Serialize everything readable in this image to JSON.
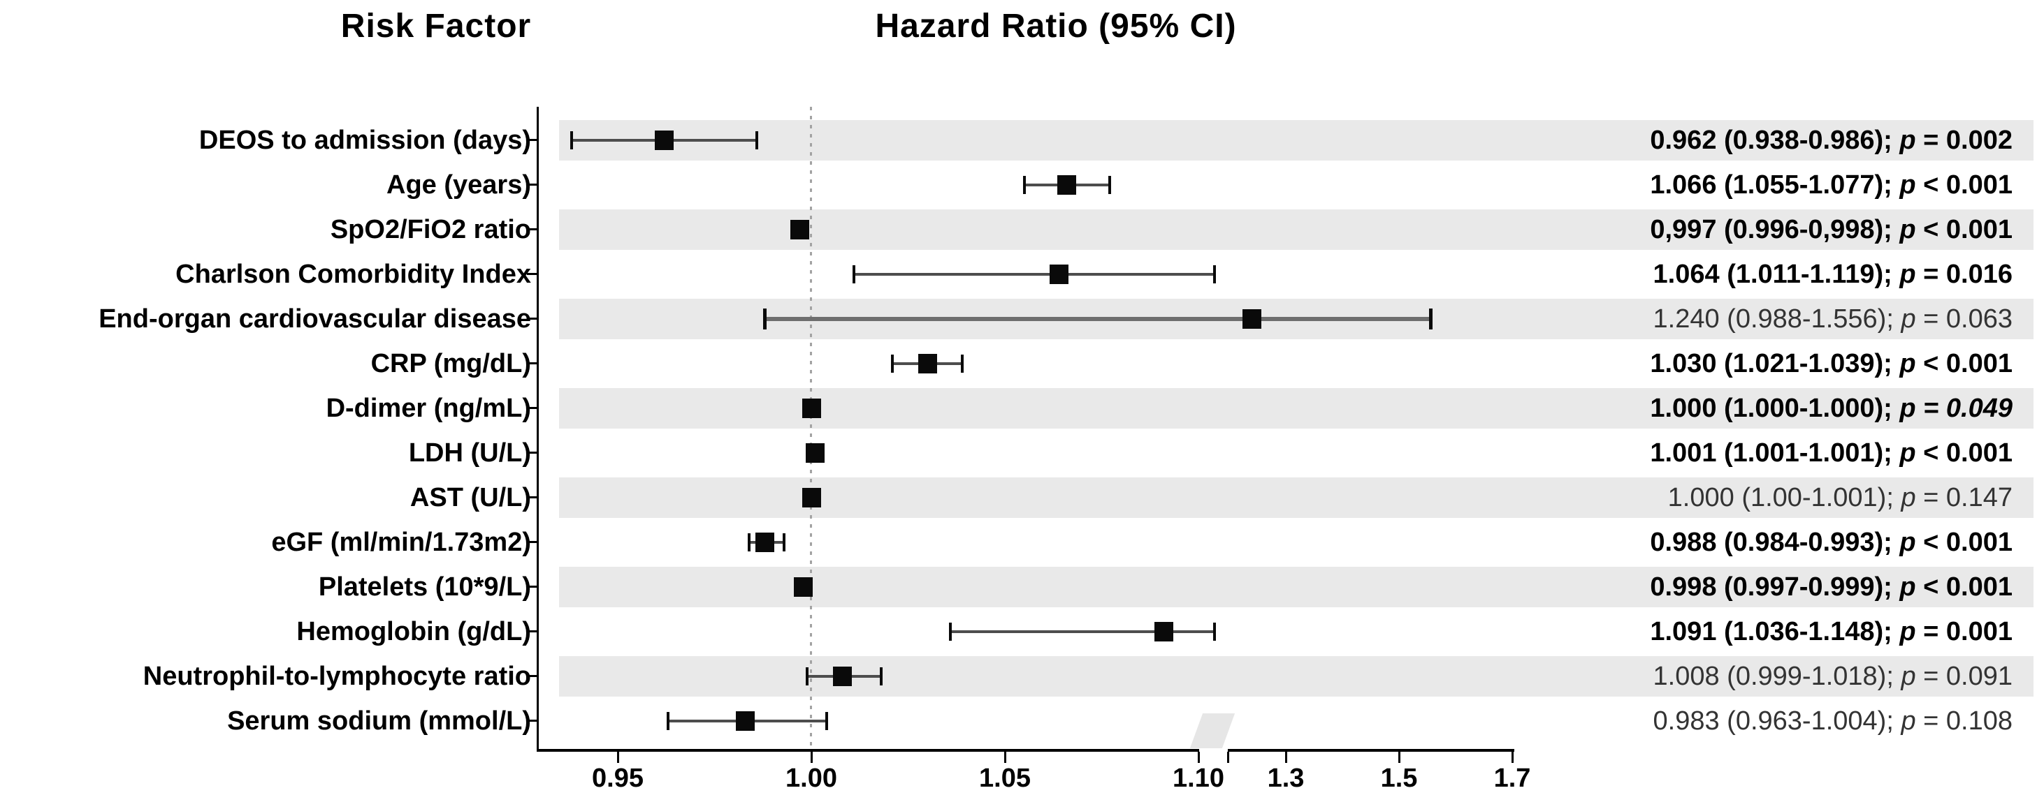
{
  "header": {
    "risk_factor": "Risk Factor",
    "hazard_ratio": "Hazard Ratio (95% CI)"
  },
  "colors": {
    "band": "#e9e9e9",
    "ci_line": "#4d4d4d",
    "ci_line_thick": "#6e6e6e",
    "marker": "#0a0a0a",
    "cap": "#0a0a0a",
    "axis": "#000000",
    "reference_line": "#a3a3a3",
    "text_bold": "#000000",
    "text_regular": "#333333"
  },
  "chart_data": {
    "type": "scatter",
    "subtype": "forest-plot",
    "title": "Hazard Ratio (95% CI)",
    "left_column_title": "Risk Factor",
    "reference_line_value": 1.0,
    "x_axis": {
      "broken": true,
      "left_segment_range": [
        0.93,
        1.11
      ],
      "right_segment_range": [
        1.2,
        1.75
      ],
      "ticks": [
        {
          "label": "0.95",
          "value": 0.95
        },
        {
          "label": "1.00",
          "value": 1.0
        },
        {
          "label": "1.05",
          "value": 1.05
        },
        {
          "label": "1.10",
          "value": 1.1
        },
        {
          "label": "1.3",
          "value": 1.3
        },
        {
          "label": "1.5",
          "value": 1.5
        },
        {
          "label": "1.7",
          "value": 1.7
        }
      ]
    },
    "rows": [
      {
        "label": "DEOS to admission (days)",
        "hr": 0.962,
        "ci_low": 0.938,
        "ci_high": 0.986,
        "value_text": "0.962 (0.938-0.986); ",
        "p_symbol": "p",
        "p_text": " = 0.002",
        "bold": true,
        "shaded": true
      },
      {
        "label": "Age (years)",
        "hr": 1.066,
        "ci_low": 1.055,
        "ci_high": 1.077,
        "value_text": "1.066 (1.055-1.077); ",
        "p_symbol": "p",
        "p_text": " < 0.001",
        "bold": true,
        "shaded": false
      },
      {
        "label": "SpO2/FiO2 ratio",
        "hr": 0.997,
        "ci_low": 0.996,
        "ci_high": 0.998,
        "value_text": "0,997 (0.996-0,998); ",
        "p_symbol": "p",
        "p_text": " < 0.001",
        "bold": true,
        "shaded": true
      },
      {
        "label": "Charlson Comorbidity Index",
        "hr": 1.064,
        "ci_low": 1.011,
        "ci_high": 1.119,
        "value_text": "1.064 (1.011-1.119); ",
        "p_symbol": "p",
        "p_text": " = 0.016",
        "bold": true,
        "shaded": false
      },
      {
        "label": "End-organ cardiovascular disease",
        "hr": 1.24,
        "ci_low": 0.988,
        "ci_high": 1.556,
        "value_text": "1.240 (0.988-1.556); ",
        "p_symbol": "p",
        "p_text": " = 0.063",
        "bold": false,
        "shaded": true,
        "thick_ci": true
      },
      {
        "label": "CRP (mg/dL)",
        "hr": 1.03,
        "ci_low": 1.021,
        "ci_high": 1.039,
        "value_text": "1.030 (1.021-1.039); ",
        "p_symbol": "p",
        "p_text": " < 0.001",
        "bold": true,
        "shaded": false
      },
      {
        "label": "D-dimer (ng/mL)",
        "hr": 1.0,
        "ci_low": 1.0,
        "ci_high": 1.0,
        "value_text": "1.000 (1.000-1.000); ",
        "p_symbol": "p",
        "p_text": " = 0.049",
        "bold": true,
        "shaded": true,
        "p_italic_full": true
      },
      {
        "label": "LDH (U/L)",
        "hr": 1.001,
        "ci_low": 1.001,
        "ci_high": 1.001,
        "value_text": "1.001 (1.001-1.001); ",
        "p_symbol": "p",
        "p_text": " < 0.001",
        "bold": true,
        "shaded": false
      },
      {
        "label": "AST (U/L)",
        "hr": 1.0,
        "ci_low": 1.0,
        "ci_high": 1.001,
        "value_text": "1.000 (1.00-1.001); ",
        "p_symbol": "p",
        "p_text": " = 0.147",
        "bold": false,
        "shaded": true
      },
      {
        "label": "eGF (ml/min/1.73m2)",
        "hr": 0.988,
        "ci_low": 0.984,
        "ci_high": 0.993,
        "value_text": "0.988 (0.984-0.993); ",
        "p_symbol": "p",
        "p_text": " < 0.001",
        "bold": true,
        "shaded": false
      },
      {
        "label": "Platelets (10*9/L)",
        "hr": 0.998,
        "ci_low": 0.997,
        "ci_high": 0.999,
        "value_text": "0.998 (0.997-0.999); ",
        "p_symbol": "p",
        "p_text": " < 0.001",
        "bold": true,
        "shaded": true
      },
      {
        "label": "Hemoglobin (g/dL)",
        "hr": 1.091,
        "ci_low": 1.036,
        "ci_high": 1.148,
        "value_text": "1.091 (1.036-1.148); ",
        "p_symbol": "p",
        "p_text": " = 0.001",
        "bold": true,
        "shaded": false
      },
      {
        "label": "Neutrophil-to-lymphocyte ratio",
        "hr": 1.008,
        "ci_low": 0.999,
        "ci_high": 1.018,
        "value_text": "1.008 (0.999-1.018); ",
        "p_symbol": "p",
        "p_text": " = 0.091",
        "bold": false,
        "shaded": true
      },
      {
        "label": "Serum sodium (mmol/L)",
        "hr": 0.983,
        "ci_low": 0.963,
        "ci_high": 1.004,
        "value_text": "0.983 (0.963-1.004); ",
        "p_symbol": "p",
        "p_text": " = 0.108",
        "bold": false,
        "shaded": false
      }
    ]
  }
}
